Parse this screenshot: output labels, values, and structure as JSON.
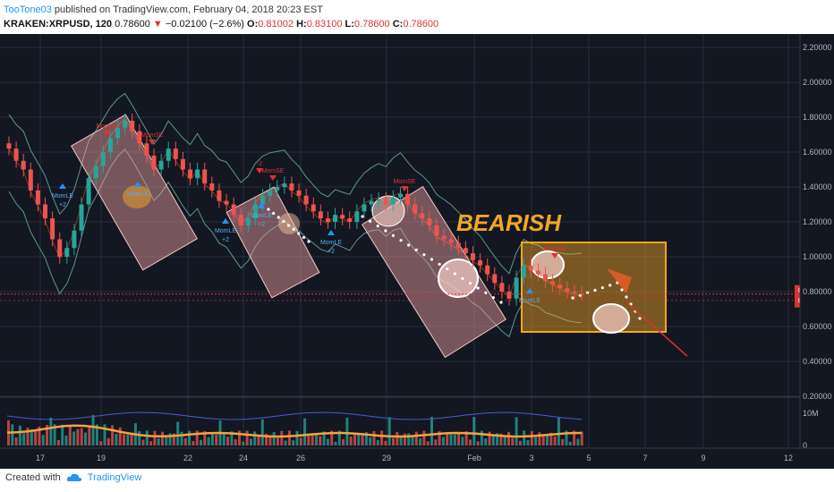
{
  "header": {
    "author": "TooTone03",
    "published_text": "published on TradingView.com, February 04, 2018 20:23 EST",
    "symbol": "KRAKEN:XRPUSD, 120",
    "last": "0.78600",
    "change": "−0.02100 (−2.6%)",
    "o_label": "O:",
    "o": "0.81002",
    "h_label": "H:",
    "h": "0.83100",
    "l_label": "L:",
    "l": "0.78600",
    "c_label": "C:",
    "c": "0.78600"
  },
  "footer": {
    "created_with": "Created with",
    "brand": "TradingView"
  },
  "colors": {
    "background": "#131722",
    "grid": "#2a2e39",
    "up": "#26a69a",
    "down": "#ef5350",
    "box": "#f0a3a3",
    "orange_box": "#f5a623",
    "bearish": "#f5a623",
    "volume_ma": "#f4a340",
    "volume_line": "#4a5bd4"
  },
  "chart_data": {
    "type": "candlestick",
    "title": "",
    "price_axis": {
      "ticks": [
        "2.20000",
        "2.00000",
        "1.80000",
        "1.60000",
        "1.40000",
        "1.20000",
        "1.00000",
        "0.80000",
        "0.60000",
        "0.40000",
        "0.20000"
      ],
      "range": [
        0.2,
        2.2
      ]
    },
    "x_axis": {
      "ticks": [
        "17",
        "19",
        "22",
        "24",
        "26",
        "29",
        "Feb",
        "3",
        "5",
        "7",
        "9",
        "12"
      ]
    },
    "price_labels": {
      "last": "0.78600",
      "countdown": "36:35",
      "low": "0.75968"
    },
    "volume_axis": {
      "ticks": [
        "10M",
        "0"
      ]
    },
    "annotation": "BEARISH",
    "signals": {
      "long": [
        "MomLE\n+2",
        "MomLE",
        "MomLE\n+2",
        "MomLE\n+2",
        "MomLE\n+2",
        "MomLE"
      ],
      "short": [
        "MomSE",
        "MomSE",
        "-2",
        "MomSE",
        "MomSE",
        "MomSE"
      ]
    },
    "series": [
      {
        "name": "",
        "close": [
          1.62,
          1.55,
          1.5,
          1.38,
          1.3,
          1.22,
          1.1,
          1.0,
          1.05,
          1.15,
          1.3,
          1.45,
          1.52,
          1.6,
          1.68,
          1.74,
          1.78,
          1.72,
          1.65,
          1.58,
          1.5,
          1.55,
          1.62,
          1.56,
          1.5,
          1.45,
          1.5,
          1.42,
          1.38,
          1.32,
          1.3,
          1.24,
          1.18,
          1.22,
          1.3,
          1.35,
          1.38,
          1.4,
          1.42,
          1.38,
          1.35,
          1.3,
          1.26,
          1.22,
          1.2,
          1.24,
          1.22,
          1.2,
          1.26,
          1.3,
          1.32,
          1.33,
          1.3,
          1.34,
          1.36,
          1.3,
          1.25,
          1.22,
          1.18,
          1.12,
          1.1,
          1.08,
          1.05,
          1.02,
          0.98,
          0.95,
          0.9,
          0.85,
          0.8,
          0.76,
          0.88,
          0.95,
          0.92,
          0.9,
          0.86,
          0.84,
          0.82,
          0.8,
          0.79,
          0.786
        ]
      }
    ]
  }
}
